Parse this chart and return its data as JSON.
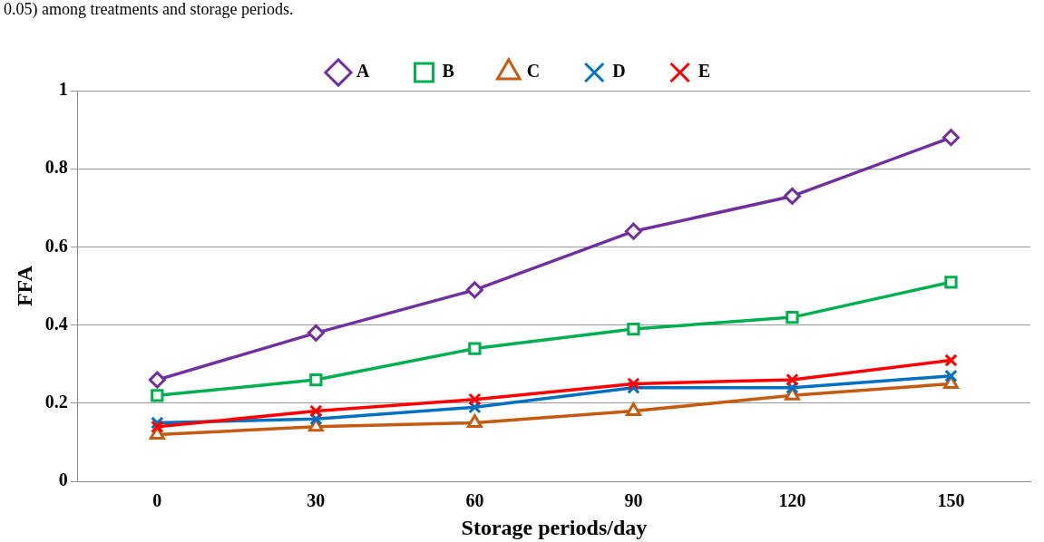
{
  "chart_data": {
    "type": "line",
    "ylabel": "FFA",
    "xlabel": "Storage periods/day",
    "annotations": [
      "0.05) among treatments and storage periods."
    ],
    "categories": [
      "0",
      "30",
      "60",
      "90",
      "120",
      "150"
    ],
    "series": [
      {
        "name": "A",
        "color": "#7030a0",
        "marker": "diamond",
        "values": [
          0.26,
          0.38,
          0.49,
          0.64,
          0.73,
          0.88
        ]
      },
      {
        "name": "B",
        "color": "#00b050",
        "marker": "square",
        "values": [
          0.22,
          0.26,
          0.34,
          0.39,
          0.42,
          0.51
        ]
      },
      {
        "name": "C",
        "color": "#c55a11",
        "marker": "triangle",
        "values": [
          0.12,
          0.14,
          0.15,
          0.18,
          0.22,
          0.25
        ]
      },
      {
        "name": "D",
        "color": "#0070c0",
        "marker": "cross",
        "values": [
          0.15,
          0.16,
          0.19,
          0.24,
          0.24,
          0.27
        ]
      },
      {
        "name": "E",
        "color": "#ff0000",
        "marker": "cross",
        "values": [
          0.14,
          0.18,
          0.21,
          0.25,
          0.26,
          0.31
        ]
      }
    ],
    "ylim": [
      0,
      1
    ],
    "yticks": [
      0,
      0.2,
      0.4,
      0.6,
      0.8,
      1
    ],
    "grid": "y",
    "legend": "top"
  }
}
